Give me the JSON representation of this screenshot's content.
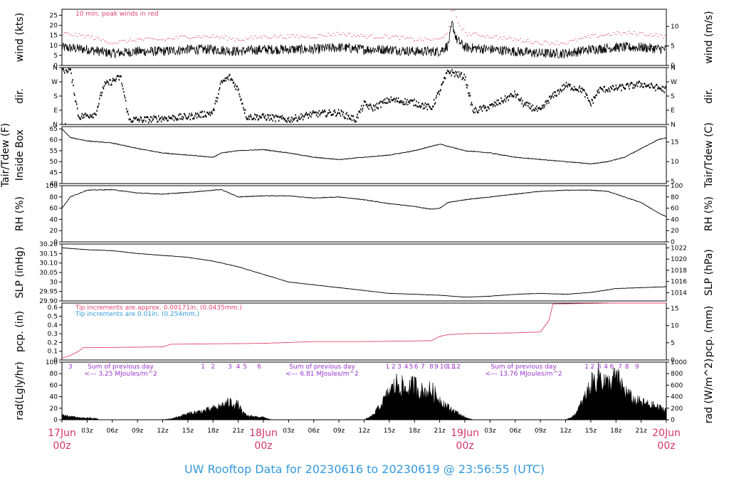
{
  "title": "UW Rooftop Data for 20230616  to  20230619 @ 23:56:55  (UTC)",
  "colors": {
    "red": "#e0446e",
    "blue": "#3399dd",
    "purple": "#9933cc",
    "line": "#000000"
  },
  "x_axis": {
    "hour_labels": [
      "03z",
      "06z",
      "09z",
      "12z",
      "15z",
      "18z",
      "21z",
      "03z",
      "06z",
      "09z",
      "12z",
      "15z",
      "18z",
      "21z",
      "03z",
      "06z",
      "09z",
      "12z",
      "15z",
      "18z",
      "21z"
    ],
    "hour_positions": [
      3,
      6,
      9,
      12,
      15,
      18,
      21,
      27,
      30,
      33,
      36,
      39,
      42,
      45,
      51,
      54,
      57,
      60,
      63,
      66,
      69
    ],
    "day_labels": [
      {
        "date": "17Jun",
        "hour": "00z",
        "at": 0
      },
      {
        "date": "18Jun",
        "hour": "00z",
        "at": 24
      },
      {
        "date": "19Jun",
        "hour": "00z",
        "at": 48
      },
      {
        "date": "20Jun",
        "hour": "00z",
        "at": 72
      }
    ]
  },
  "chart_data": [
    {
      "type": "line",
      "name": "wind",
      "ylabel_left": "wind (kts)",
      "ylabel_right": "wind (m/s)",
      "ylim": [
        0,
        28
      ],
      "yticks_left": [
        0,
        5,
        10,
        15,
        20,
        25
      ],
      "yticks_right": [
        0,
        5,
        10
      ],
      "annotation": "10 min. peak winds in red",
      "profile": [
        [
          0,
          9
        ],
        [
          3,
          8
        ],
        [
          6,
          6
        ],
        [
          9,
          7
        ],
        [
          12,
          7
        ],
        [
          15,
          8
        ],
        [
          18,
          8
        ],
        [
          21,
          7
        ],
        [
          24,
          8
        ],
        [
          27,
          8
        ],
        [
          30,
          8
        ],
        [
          33,
          9
        ],
        [
          36,
          8
        ],
        [
          39,
          8
        ],
        [
          42,
          7
        ],
        [
          45,
          7
        ],
        [
          46,
          10
        ],
        [
          46.5,
          21
        ],
        [
          47,
          13
        ],
        [
          48,
          9
        ],
        [
          51,
          8
        ],
        [
          54,
          7
        ],
        [
          57,
          6
        ],
        [
          60,
          6
        ],
        [
          63,
          8
        ],
        [
          66,
          9
        ],
        [
          69,
          9
        ],
        [
          72,
          8
        ]
      ]
    },
    {
      "type": "scatter",
      "name": "dir",
      "ylabel_left": "dir.",
      "ylabel_right": "dir.",
      "ylim": [
        0,
        4
      ],
      "yticks_left": [
        "N",
        "E",
        "S",
        "W",
        "N"
      ],
      "yticks_right": [
        "N",
        "E",
        "S",
        "W",
        "N"
      ],
      "profile": [
        [
          0,
          3.9
        ],
        [
          1,
          3.9
        ],
        [
          2,
          0.6
        ],
        [
          4,
          0.8
        ],
        [
          5,
          2.8
        ],
        [
          7,
          3.4
        ],
        [
          8,
          0.4
        ],
        [
          10,
          0.4
        ],
        [
          12,
          0.5
        ],
        [
          15,
          0.6
        ],
        [
          18,
          0.9
        ],
        [
          19,
          3.0
        ],
        [
          20,
          3.4
        ],
        [
          21,
          2.5
        ],
        [
          22,
          0.6
        ],
        [
          24,
          0.6
        ],
        [
          27,
          0.4
        ],
        [
          30,
          0.8
        ],
        [
          33,
          0.9
        ],
        [
          35,
          0.4
        ],
        [
          36,
          1.5
        ],
        [
          37,
          1.2
        ],
        [
          39,
          1.8
        ],
        [
          42,
          1.6
        ],
        [
          44,
          1.2
        ],
        [
          45,
          2.4
        ],
        [
          46,
          3.8
        ],
        [
          48,
          3.4
        ],
        [
          49,
          1.0
        ],
        [
          51,
          1.3
        ],
        [
          54,
          2.2
        ],
        [
          55,
          1.5
        ],
        [
          57,
          1.0
        ],
        [
          58,
          1.8
        ],
        [
          60,
          2.8
        ],
        [
          62,
          2.5
        ],
        [
          63,
          1.5
        ],
        [
          64,
          2.5
        ],
        [
          66,
          2.6
        ],
        [
          69,
          2.9
        ],
        [
          72,
          2.5
        ]
      ]
    },
    {
      "type": "line",
      "name": "tair",
      "ylabel_left_outer": "Tair/Tdew (F)",
      "ylabel_left": "Inside Box",
      "ylabel_right": "Tair/Tdew (C)",
      "ylim": [
        40,
        66
      ],
      "yticks_left": [
        40,
        45,
        50,
        55,
        60,
        65
      ],
      "yticks_right": [
        5,
        10,
        15
      ],
      "profile": [
        [
          0,
          65
        ],
        [
          1,
          61
        ],
        [
          3,
          59.5
        ],
        [
          6,
          58.5
        ],
        [
          9,
          56
        ],
        [
          12,
          54
        ],
        [
          15,
          53
        ],
        [
          18,
          52
        ],
        [
          19,
          54
        ],
        [
          21,
          55
        ],
        [
          24,
          55.5
        ],
        [
          27,
          54
        ],
        [
          30,
          52
        ],
        [
          33,
          51
        ],
        [
          36,
          52
        ],
        [
          39,
          53
        ],
        [
          42,
          55
        ],
        [
          44,
          57
        ],
        [
          45,
          58
        ],
        [
          46,
          57
        ],
        [
          48,
          55
        ],
        [
          51,
          54
        ],
        [
          54,
          52
        ],
        [
          57,
          51
        ],
        [
          60,
          50
        ],
        [
          63,
          49
        ],
        [
          65,
          50
        ],
        [
          66,
          51
        ],
        [
          67,
          52
        ],
        [
          69,
          56
        ],
        [
          71,
          60
        ],
        [
          72,
          61
        ]
      ]
    },
    {
      "type": "line",
      "name": "rh",
      "ylabel_left": "RH (%)",
      "ylabel_right": "RH (%)",
      "ylim": [
        0,
        100
      ],
      "yticks_left": [
        0,
        20,
        40,
        60,
        80,
        100
      ],
      "yticks_right": [
        0,
        20,
        40,
        60,
        80,
        100
      ],
      "profile": [
        [
          0,
          60
        ],
        [
          1,
          80
        ],
        [
          3,
          92
        ],
        [
          6,
          93
        ],
        [
          9,
          87
        ],
        [
          12,
          85
        ],
        [
          15,
          88
        ],
        [
          18,
          92
        ],
        [
          19,
          93
        ],
        [
          21,
          80
        ],
        [
          24,
          82
        ],
        [
          27,
          82
        ],
        [
          30,
          78
        ],
        [
          33,
          80
        ],
        [
          36,
          75
        ],
        [
          39,
          68
        ],
        [
          42,
          63
        ],
        [
          44,
          58
        ],
        [
          45,
          60
        ],
        [
          46,
          70
        ],
        [
          48,
          75
        ],
        [
          51,
          80
        ],
        [
          54,
          85
        ],
        [
          57,
          90
        ],
        [
          60,
          92
        ],
        [
          63,
          92
        ],
        [
          65,
          90
        ],
        [
          66,
          85
        ],
        [
          69,
          70
        ],
        [
          71,
          52
        ],
        [
          72,
          45
        ]
      ]
    },
    {
      "type": "line",
      "name": "slp",
      "ylabel_left": "SLP (inHg)",
      "ylabel_right": "SLP (hPa)",
      "ylim": [
        29.9,
        30.2
      ],
      "yticks_left": [
        29.9,
        29.95,
        30.0,
        30.05,
        30.1,
        30.15,
        30.2
      ],
      "yticks_right": [
        1014,
        1016,
        1018,
        1020,
        1022
      ],
      "profile": [
        [
          0,
          30.18
        ],
        [
          3,
          30.17
        ],
        [
          6,
          30.165
        ],
        [
          9,
          30.15
        ],
        [
          12,
          30.14
        ],
        [
          15,
          30.13
        ],
        [
          18,
          30.11
        ],
        [
          21,
          30.08
        ],
        [
          24,
          30.04
        ],
        [
          27,
          30.0
        ],
        [
          30,
          29.985
        ],
        [
          33,
          29.97
        ],
        [
          36,
          29.955
        ],
        [
          39,
          29.94
        ],
        [
          42,
          29.935
        ],
        [
          45,
          29.93
        ],
        [
          48,
          29.92
        ],
        [
          51,
          29.925
        ],
        [
          54,
          29.935
        ],
        [
          57,
          29.94
        ],
        [
          60,
          29.935
        ],
        [
          63,
          29.945
        ],
        [
          66,
          29.965
        ],
        [
          69,
          29.97
        ],
        [
          72,
          29.975
        ]
      ]
    },
    {
      "type": "line",
      "name": "pcp",
      "ylabel_left": "pcp. (in)",
      "ylabel_right": "pcp. (mm)",
      "ylim": [
        0,
        0.65
      ],
      "yticks_left": [
        0.0,
        0.1,
        0.2,
        0.3,
        0.4,
        0.5,
        0.6
      ],
      "yticks_right": [
        0,
        5,
        10,
        15
      ],
      "annotation_red": "Tip increments are approx. 0.00171in. (0.0435mm.)",
      "annotation_blue": "Tip increments are 0.01in. (0.254mm.)",
      "profile": [
        [
          0,
          0.02
        ],
        [
          1,
          0.05
        ],
        [
          2,
          0.1
        ],
        [
          2.5,
          0.14
        ],
        [
          12,
          0.15
        ],
        [
          13,
          0.18
        ],
        [
          24,
          0.19
        ],
        [
          30,
          0.21
        ],
        [
          36,
          0.21
        ],
        [
          44,
          0.22
        ],
        [
          45,
          0.27
        ],
        [
          46,
          0.29
        ],
        [
          48,
          0.3
        ],
        [
          54,
          0.31
        ],
        [
          57,
          0.32
        ],
        [
          58,
          0.45
        ],
        [
          58.5,
          0.64
        ],
        [
          66,
          0.65
        ],
        [
          72,
          0.65
        ]
      ]
    },
    {
      "type": "area",
      "name": "rad",
      "ylabel_left": "rad(Lgly/hr)",
      "ylabel_right": "rad (W/m^2)",
      "ylim": [
        0,
        100
      ],
      "yticks_left": [
        0,
        20,
        40,
        60,
        80,
        100
      ],
      "yticks_right": [
        0,
        200,
        400,
        600,
        800,
        1000
      ],
      "hour_marks": [
        {
          "label": "3",
          "at": 1
        },
        {
          "label": "1",
          "at": 16.8
        },
        {
          "label": "2",
          "at": 18
        },
        {
          "label": "3",
          "at": 20
        },
        {
          "label": "4",
          "at": 21
        },
        {
          "label": "5",
          "at": 21.8
        },
        {
          "label": "6",
          "at": 23.5
        },
        {
          "label": "1",
          "at": 38.8
        },
        {
          "label": "2",
          "at": 39.5
        },
        {
          "label": "3",
          "at": 40.2
        },
        {
          "label": "4",
          "at": 41
        },
        {
          "label": "5",
          "at": 41.6
        },
        {
          "label": "6",
          "at": 42.2
        },
        {
          "label": "7",
          "at": 43
        },
        {
          "label": "8",
          "at": 44
        },
        {
          "label": "9",
          "at": 44.6
        },
        {
          "label": "10",
          "at": 45.5
        },
        {
          "label": "11",
          "at": 46.3
        },
        {
          "label": "12",
          "at": 47
        },
        {
          "label": "1",
          "at": 62.5
        },
        {
          "label": "2",
          "at": 63.2
        },
        {
          "label": "3",
          "at": 64
        },
        {
          "label": "4",
          "at": 64.8
        },
        {
          "label": "6",
          "at": 65.5
        },
        {
          "label": "7",
          "at": 66.5
        },
        {
          "label": "8",
          "at": 67.3
        },
        {
          "label": "9",
          "at": 68.5
        }
      ],
      "daily_notes": [
        {
          "line1": "Sum of previous day",
          "line2": "<--- 3.25 MJoules/m^2",
          "at": 7
        },
        {
          "line1": "Sum of previous day",
          "line2": "<--- 6.81 MJoules/m^2",
          "at": 31
        },
        {
          "line1": "Sum of previous day",
          "line2": "<--- 13.76 MJoules/m^2",
          "at": 55
        }
      ],
      "profile": [
        [
          0,
          8
        ],
        [
          1,
          7
        ],
        [
          2,
          4
        ],
        [
          4,
          3
        ],
        [
          4.5,
          0
        ],
        [
          12,
          0
        ],
        [
          13,
          2
        ],
        [
          15,
          12
        ],
        [
          17,
          18
        ],
        [
          18,
          22
        ],
        [
          19,
          28
        ],
        [
          20,
          35
        ],
        [
          21,
          30
        ],
        [
          21.5,
          15
        ],
        [
          22,
          8
        ],
        [
          24,
          5
        ],
        [
          25,
          0
        ],
        [
          36,
          0
        ],
        [
          37,
          8
        ],
        [
          38,
          30
        ],
        [
          39,
          55
        ],
        [
          40,
          75
        ],
        [
          41,
          60
        ],
        [
          42,
          70
        ],
        [
          43,
          55
        ],
        [
          44,
          60
        ],
        [
          45,
          40
        ],
        [
          46,
          25
        ],
        [
          47,
          15
        ],
        [
          48,
          5
        ],
        [
          49,
          0
        ],
        [
          60,
          0
        ],
        [
          61,
          8
        ],
        [
          62,
          35
        ],
        [
          63,
          70
        ],
        [
          64,
          90
        ],
        [
          65,
          70
        ],
        [
          66,
          85
        ],
        [
          67,
          60
        ],
        [
          68,
          40
        ],
        [
          69,
          35
        ],
        [
          70,
          30
        ],
        [
          71,
          25
        ],
        [
          72,
          20
        ]
      ]
    }
  ]
}
